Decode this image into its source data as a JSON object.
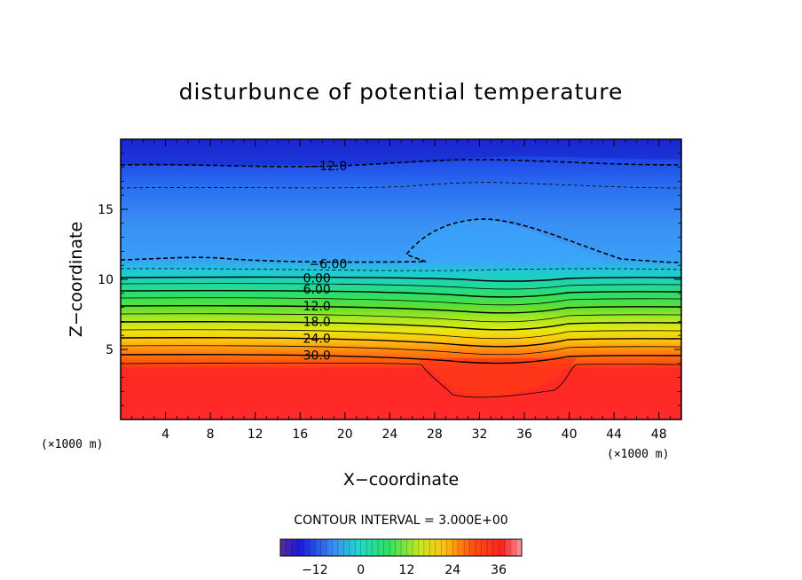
{
  "chart_data": {
    "type": "contour",
    "title": "disturbunce of potential temperature",
    "xlabel": "X−coordinate",
    "ylabel": "Z−coordinate",
    "x_unit": "(×1000 m)",
    "y_unit": "(×1000 m)",
    "xlim": [
      0,
      50
    ],
    "ylim": [
      0,
      20
    ],
    "x_ticks": [
      "4",
      "8",
      "12",
      "16",
      "20",
      "24",
      "28",
      "32",
      "36",
      "40",
      "44",
      "48"
    ],
    "x_tick_values": [
      4,
      8,
      12,
      16,
      20,
      24,
      28,
      32,
      36,
      40,
      44,
      48
    ],
    "y_ticks": [
      "5",
      "10",
      "15"
    ],
    "y_tick_values": [
      5,
      10,
      15
    ],
    "contour_interval_text": "CONTOUR INTERVAL = 3.000E+00",
    "contour_labels": [
      {
        "text": "−12.0",
        "value": -12,
        "x": 18.5,
        "z": 18.1
      },
      {
        "text": "−6.00",
        "value": -6,
        "x": 18.5,
        "z": 11.1
      },
      {
        "text": "0.00",
        "value": 0,
        "x": 17.5,
        "z": 10.1
      },
      {
        "text": "6.00",
        "value": 6,
        "x": 17.5,
        "z": 9.3
      },
      {
        "text": "12.0",
        "value": 12,
        "x": 17.5,
        "z": 8.1
      },
      {
        "text": "18.0",
        "value": 18,
        "x": 17.5,
        "z": 7.0
      },
      {
        "text": "24.0",
        "value": 24,
        "x": 17.5,
        "z": 5.8
      },
      {
        "text": "30.0",
        "value": 30,
        "x": 17.5,
        "z": 4.6
      }
    ],
    "colorbar": {
      "ticks": [
        "−12",
        "0",
        "12",
        "24",
        "36"
      ],
      "tick_values": [
        -12,
        0,
        12,
        24,
        36
      ],
      "range": [
        -21,
        42
      ]
    }
  }
}
